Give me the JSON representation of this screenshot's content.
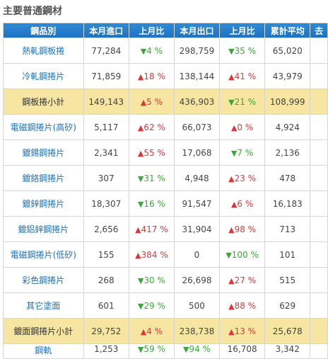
{
  "title": "主要普通鋼材",
  "headers": [
    "鋼品別",
    "本月進口",
    "上月比",
    "本月出口",
    "上月比",
    "累計平均",
    "去"
  ],
  "rows": [
    {
      "name": "熱軋鋼板捲",
      "import": "77,284",
      "imp_dir": "down",
      "imp_pct": "4 %",
      "export": "298,759",
      "exp_dir": "down",
      "exp_pct": "35 %",
      "avg": "65,020",
      "subtotal": false
    },
    {
      "name": "冷軋鋼捲片",
      "import": "71,859",
      "imp_dir": "up",
      "imp_pct": "18 %",
      "export": "138,144",
      "exp_dir": "up",
      "exp_pct": "41 %",
      "avg": "43,979",
      "subtotal": false
    },
    {
      "name": "鋼板捲小計",
      "import": "149,143",
      "imp_dir": "up",
      "imp_pct": "5 %",
      "export": "436,903",
      "exp_dir": "down",
      "exp_pct": "21 %",
      "avg": "108,999",
      "subtotal": true
    },
    {
      "name": "電磁鋼捲片(高矽)",
      "import": "5,117",
      "imp_dir": "up",
      "imp_pct": "62 %",
      "export": "66,073",
      "exp_dir": "up",
      "exp_pct": "0 %",
      "avg": "4,924",
      "subtotal": false
    },
    {
      "name": "鍍錫鋼捲片",
      "import": "2,341",
      "imp_dir": "up",
      "imp_pct": "55 %",
      "export": "17,068",
      "exp_dir": "down",
      "exp_pct": "7 %",
      "avg": "2,136",
      "subtotal": false
    },
    {
      "name": "鍍鉻鋼捲片",
      "import": "307",
      "imp_dir": "down",
      "imp_pct": "31 %",
      "export": "4,948",
      "exp_dir": "up",
      "exp_pct": "23 %",
      "avg": "478",
      "subtotal": false
    },
    {
      "name": "鍍鋅鋼捲片",
      "import": "18,307",
      "imp_dir": "down",
      "imp_pct": "16 %",
      "export": "91,547",
      "exp_dir": "up",
      "exp_pct": "6 %",
      "avg": "16,183",
      "subtotal": false
    },
    {
      "name": "鍍鋁鋅鋼捲片",
      "import": "2,656",
      "imp_dir": "up",
      "imp_pct": "417 %",
      "export": "31,904",
      "exp_dir": "up",
      "exp_pct": "98 %",
      "avg": "713",
      "subtotal": false
    },
    {
      "name": "電磁鋼捲片(低矽)",
      "import": "155",
      "imp_dir": "up",
      "imp_pct": "384 %",
      "export": "0",
      "exp_dir": "down",
      "exp_pct": "100 %",
      "avg": "101",
      "subtotal": false
    },
    {
      "name": "彩色鋼捲片",
      "import": "268",
      "imp_dir": "down",
      "imp_pct": "30 %",
      "export": "26,698",
      "exp_dir": "up",
      "exp_pct": "27 %",
      "avg": "515",
      "subtotal": false
    },
    {
      "name": "其它塗面",
      "import": "601",
      "imp_dir": "down",
      "imp_pct": "29 %",
      "export": "500",
      "exp_dir": "up",
      "exp_pct": "88 %",
      "avg": "629",
      "subtotal": false
    },
    {
      "name": "鍍面鋼捲片小計",
      "import": "29,752",
      "imp_dir": "up",
      "imp_pct": "4 %",
      "export": "238,738",
      "exp_dir": "up",
      "exp_pct": "13 %",
      "avg": "25,678",
      "subtotal": true
    },
    {
      "name": "鋼軌",
      "import": "1,253",
      "imp_dir": "down",
      "imp_pct": "59 %",
      "export": "",
      "exp_dir": "down",
      "exp_pct": "94 %",
      "avg": "16,708",
      "avg2": "3,342",
      "subtotal": false,
      "cut": true
    }
  ],
  "arrows": {
    "up": "▲",
    "down": "▼"
  },
  "colors": {
    "header_top": "#2f8bd6",
    "header_bottom": "#1c70c0",
    "up": "#d9383a",
    "down": "#3aaa35",
    "subtotal_bg": "#f6e6a2",
    "link": "#1e6fb8"
  }
}
